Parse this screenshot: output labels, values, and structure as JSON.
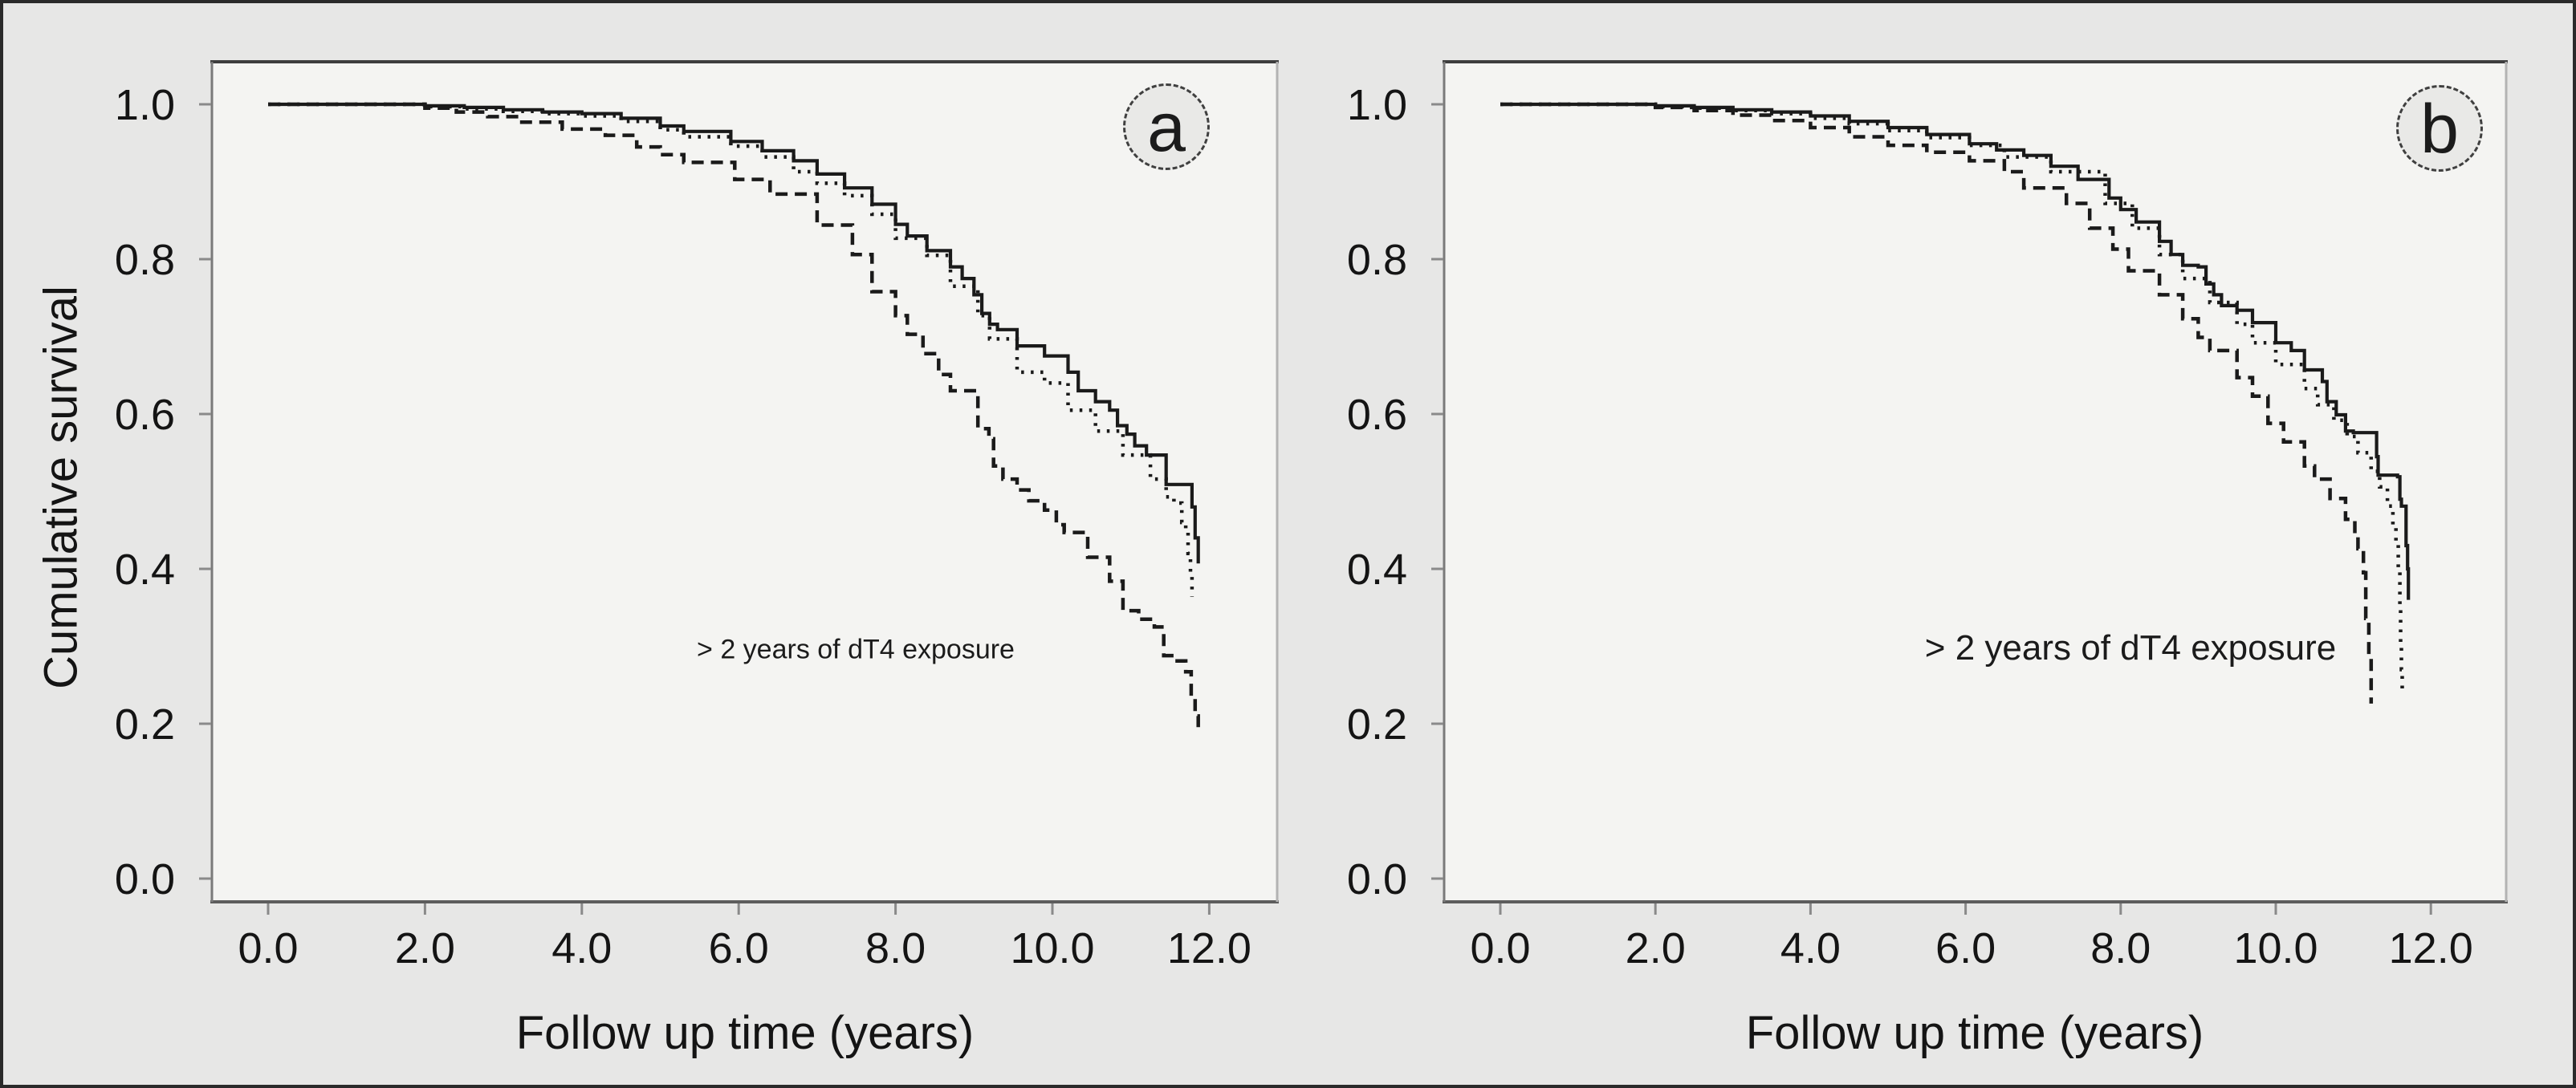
{
  "figure": {
    "description": "Two-panel Kaplan-Meier cumulative survival figure",
    "background_color": "#e7e7e6",
    "plot_background_color": "#f4f4f2",
    "curve_color": "#1a1a1a",
    "frame_top_color": "#3e3e3e",
    "frame_bottom_color": "#5d5d5d",
    "frame_left_color": "#7a7a7a",
    "frame_right_color": "#b3b3b3",
    "tick_mark_color": "#8a8a8a",
    "text_color": "#141414"
  },
  "chart_data": [
    {
      "type": "line",
      "curve_style": "step",
      "panel_label": "a",
      "title": "",
      "xlabel": "Follow up time (years)",
      "ylabel": "Cumulative survival",
      "annotation": "> 2 years of dT4 exposure",
      "grid": false,
      "legend": null,
      "xlim": [
        -0.72,
        12.88
      ],
      "ylim": [
        -0.03,
        1.055
      ],
      "x_ticks": [
        0,
        2,
        4,
        6,
        8,
        10,
        12
      ],
      "x_tick_labels": [
        "0.0",
        "2.0",
        "4.0",
        "6.0",
        "8.0",
        "10.0",
        "12.0"
      ],
      "y_ticks": [
        0,
        0.2,
        0.4,
        0.6,
        0.8,
        1.0
      ],
      "y_tick_labels": [
        "0.0",
        "0.2",
        "0.4",
        "0.6",
        "0.8",
        "1.0"
      ],
      "series": [
        {
          "name": "solid",
          "line_style": "solid",
          "points": [
            [
              0,
              1
            ],
            [
              1.3,
              1
            ],
            [
              2,
              0.998
            ],
            [
              2.5,
              0.996
            ],
            [
              3,
              0.993
            ],
            [
              3.5,
              0.99
            ],
            [
              4,
              0.988
            ],
            [
              4.5,
              0.982
            ],
            [
              5,
              0.972
            ],
            [
              5.3,
              0.965
            ],
            [
              5.9,
              0.952
            ],
            [
              6.3,
              0.94
            ],
            [
              6.7,
              0.927
            ],
            [
              7,
              0.91
            ],
            [
              7.35,
              0.892
            ],
            [
              7.7,
              0.871
            ],
            [
              8,
              0.845
            ],
            [
              8.15,
              0.83
            ],
            [
              8.4,
              0.811
            ],
            [
              8.7,
              0.79
            ],
            [
              8.85,
              0.775
            ],
            [
              9,
              0.754
            ],
            [
              9.1,
              0.73
            ],
            [
              9.2,
              0.716
            ],
            [
              9.3,
              0.709
            ],
            [
              9.55,
              0.688
            ],
            [
              9.9,
              0.675
            ],
            [
              10.2,
              0.654
            ],
            [
              10.33,
              0.63
            ],
            [
              10.55,
              0.616
            ],
            [
              10.73,
              0.605
            ],
            [
              10.83,
              0.585
            ],
            [
              10.95,
              0.574
            ],
            [
              11.05,
              0.559
            ],
            [
              11.2,
              0.547
            ],
            [
              11.42,
              0.547
            ],
            [
              11.45,
              0.509
            ],
            [
              11.74,
              0.509
            ],
            [
              11.78,
              0.48
            ],
            [
              11.82,
              0.44
            ],
            [
              11.86,
              0.407
            ]
          ]
        },
        {
          "name": "dotted",
          "line_style": "dotted",
          "points": [
            [
              0,
              1
            ],
            [
              1.4,
              1
            ],
            [
              2,
              0.997
            ],
            [
              2.5,
              0.994
            ],
            [
              3,
              0.991
            ],
            [
              3.5,
              0.988
            ],
            [
              4,
              0.985
            ],
            [
              4.5,
              0.978
            ],
            [
              5,
              0.967
            ],
            [
              5.3,
              0.958
            ],
            [
              5.9,
              0.946
            ],
            [
              6.3,
              0.932
            ],
            [
              6.7,
              0.913
            ],
            [
              7,
              0.898
            ],
            [
              7.35,
              0.882
            ],
            [
              7.7,
              0.858
            ],
            [
              8,
              0.827
            ],
            [
              8.4,
              0.805
            ],
            [
              8.7,
              0.765
            ],
            [
              9.05,
              0.727
            ],
            [
              9.2,
              0.697
            ],
            [
              9.55,
              0.654
            ],
            [
              9.9,
              0.64
            ],
            [
              10.2,
              0.605
            ],
            [
              10.55,
              0.578
            ],
            [
              10.9,
              0.547
            ],
            [
              11.25,
              0.516
            ],
            [
              11.45,
              0.493
            ],
            [
              11.55,
              0.485
            ],
            [
              11.65,
              0.46
            ],
            [
              11.7,
              0.447
            ],
            [
              11.73,
              0.42
            ],
            [
              11.76,
              0.395
            ],
            [
              11.78,
              0.364
            ]
          ]
        },
        {
          "name": "dashed",
          "line_style": "dashed",
          "points": [
            [
              0,
              1
            ],
            [
              1.3,
              1
            ],
            [
              2,
              0.995
            ],
            [
              2.4,
              0.99
            ],
            [
              2.8,
              0.984
            ],
            [
              3.2,
              0.977
            ],
            [
              3.75,
              0.968
            ],
            [
              4.3,
              0.96
            ],
            [
              4.7,
              0.945
            ],
            [
              5,
              0.935
            ],
            [
              5.3,
              0.925
            ],
            [
              5.95,
              0.903
            ],
            [
              6.4,
              0.884
            ],
            [
              7,
              0.844
            ],
            [
              7.45,
              0.806
            ],
            [
              7.7,
              0.758
            ],
            [
              8,
              0.727
            ],
            [
              8.15,
              0.703
            ],
            [
              8.35,
              0.678
            ],
            [
              8.55,
              0.651
            ],
            [
              8.7,
              0.63
            ],
            [
              9.05,
              0.581
            ],
            [
              9.19,
              0.568
            ],
            [
              9.25,
              0.533
            ],
            [
              9.37,
              0.516
            ],
            [
              9.55,
              0.502
            ],
            [
              9.7,
              0.488
            ],
            [
              9.9,
              0.476
            ],
            [
              10.05,
              0.457
            ],
            [
              10.15,
              0.447
            ],
            [
              10.45,
              0.415
            ],
            [
              10.73,
              0.384
            ],
            [
              10.9,
              0.346
            ],
            [
              11.1,
              0.335
            ],
            [
              11.3,
              0.325
            ],
            [
              11.42,
              0.288
            ],
            [
              11.55,
              0.281
            ],
            [
              11.7,
              0.267
            ],
            [
              11.77,
              0.236
            ],
            [
              11.82,
              0.21
            ],
            [
              11.86,
              0.19
            ]
          ]
        }
      ]
    },
    {
      "type": "line",
      "curve_style": "step",
      "panel_label": "b",
      "title": "",
      "xlabel": "Follow up time (years)",
      "ylabel": "",
      "annotation": "> 2 years of dT4 exposure",
      "grid": false,
      "legend": null,
      "xlim": [
        -0.72,
        12.97
      ],
      "ylim": [
        -0.03,
        1.055
      ],
      "x_ticks": [
        0,
        2,
        4,
        6,
        8,
        10,
        12
      ],
      "x_tick_labels": [
        "0.0",
        "2.0",
        "4.0",
        "6.0",
        "8.0",
        "10.0",
        "12.0"
      ],
      "y_ticks": [
        0,
        0.2,
        0.4,
        0.6,
        0.8,
        1.0
      ],
      "y_tick_labels": [
        "0.0",
        "0.2",
        "0.4",
        "0.6",
        "0.8",
        "1.0"
      ],
      "series": [
        {
          "name": "solid",
          "line_style": "solid",
          "points": [
            [
              0,
              1
            ],
            [
              1.5,
              1
            ],
            [
              2,
              0.998
            ],
            [
              2.5,
              0.996
            ],
            [
              3,
              0.993
            ],
            [
              3.5,
              0.99
            ],
            [
              4,
              0.985
            ],
            [
              4.5,
              0.978
            ],
            [
              5,
              0.97
            ],
            [
              5.5,
              0.961
            ],
            [
              6.05,
              0.949
            ],
            [
              6.4,
              0.941
            ],
            [
              6.75,
              0.934
            ],
            [
              7.1,
              0.92
            ],
            [
              7.45,
              0.903
            ],
            [
              7.85,
              0.879
            ],
            [
              8,
              0.864
            ],
            [
              8.2,
              0.848
            ],
            [
              8.5,
              0.823
            ],
            [
              8.65,
              0.806
            ],
            [
              8.8,
              0.792
            ],
            [
              9,
              0.79
            ],
            [
              9.1,
              0.768
            ],
            [
              9.2,
              0.754
            ],
            [
              9.3,
              0.74
            ],
            [
              9.5,
              0.734
            ],
            [
              9.7,
              0.718
            ],
            [
              10,
              0.692
            ],
            [
              10.2,
              0.682
            ],
            [
              10.37,
              0.657
            ],
            [
              10.6,
              0.642
            ],
            [
              10.66,
              0.616
            ],
            [
              10.78,
              0.599
            ],
            [
              10.9,
              0.578
            ],
            [
              11,
              0.576
            ],
            [
              11.28,
              0.576
            ],
            [
              11.3,
              0.545
            ],
            [
              11.32,
              0.521
            ],
            [
              11.57,
              0.519
            ],
            [
              11.6,
              0.49
            ],
            [
              11.62,
              0.481
            ],
            [
              11.68,
              0.43
            ],
            [
              11.7,
              0.4
            ],
            [
              11.71,
              0.36
            ]
          ]
        },
        {
          "name": "dotted",
          "line_style": "dotted",
          "points": [
            [
              0,
              1
            ],
            [
              1.5,
              1
            ],
            [
              2,
              0.997
            ],
            [
              2.5,
              0.995
            ],
            [
              3,
              0.992
            ],
            [
              3.5,
              0.988
            ],
            [
              4,
              0.982
            ],
            [
              4.5,
              0.975
            ],
            [
              5,
              0.966
            ],
            [
              5.5,
              0.957
            ],
            [
              6.05,
              0.947
            ],
            [
              6.5,
              0.932
            ],
            [
              7.1,
              0.913
            ],
            [
              7.8,
              0.872
            ],
            [
              8.15,
              0.84
            ],
            [
              8.5,
              0.806
            ],
            [
              8.8,
              0.775
            ],
            [
              9.15,
              0.744
            ],
            [
              9.5,
              0.716
            ],
            [
              9.7,
              0.692
            ],
            [
              10,
              0.664
            ],
            [
              10.37,
              0.633
            ],
            [
              10.54,
              0.612
            ],
            [
              10.75,
              0.592
            ],
            [
              10.92,
              0.571
            ],
            [
              11.06,
              0.55
            ],
            [
              11.23,
              0.526
            ],
            [
              11.34,
              0.506
            ],
            [
              11.44,
              0.481
            ],
            [
              11.51,
              0.457
            ],
            [
              11.55,
              0.436
            ],
            [
              11.58,
              0.4
            ],
            [
              11.6,
              0.35
            ],
            [
              11.61,
              0.3
            ],
            [
              11.62,
              0.27
            ],
            [
              11.63,
              0.24
            ]
          ]
        },
        {
          "name": "dashed",
          "line_style": "dashed",
          "points": [
            [
              0,
              1
            ],
            [
              1.4,
              1
            ],
            [
              2,
              0.996
            ],
            [
              2.5,
              0.992
            ],
            [
              3,
              0.986
            ],
            [
              3.5,
              0.979
            ],
            [
              4,
              0.97
            ],
            [
              4.5,
              0.958
            ],
            [
              5,
              0.947
            ],
            [
              5.5,
              0.938
            ],
            [
              6.05,
              0.927
            ],
            [
              6.5,
              0.913
            ],
            [
              6.75,
              0.892
            ],
            [
              7.3,
              0.872
            ],
            [
              7.6,
              0.84
            ],
            [
              7.9,
              0.813
            ],
            [
              8.1,
              0.785
            ],
            [
              8.5,
              0.754
            ],
            [
              8.8,
              0.723
            ],
            [
              9,
              0.699
            ],
            [
              9.15,
              0.682
            ],
            [
              9.5,
              0.647
            ],
            [
              9.7,
              0.623
            ],
            [
              9.9,
              0.588
            ],
            [
              10.1,
              0.564
            ],
            [
              10.37,
              0.533
            ],
            [
              10.5,
              0.516
            ],
            [
              10.7,
              0.491
            ],
            [
              10.9,
              0.464
            ],
            [
              11.02,
              0.443
            ],
            [
              11.06,
              0.426
            ],
            [
              11.13,
              0.395
            ],
            [
              11.16,
              0.336
            ],
            [
              11.2,
              0.284
            ],
            [
              11.23,
              0.226
            ]
          ]
        }
      ]
    }
  ]
}
